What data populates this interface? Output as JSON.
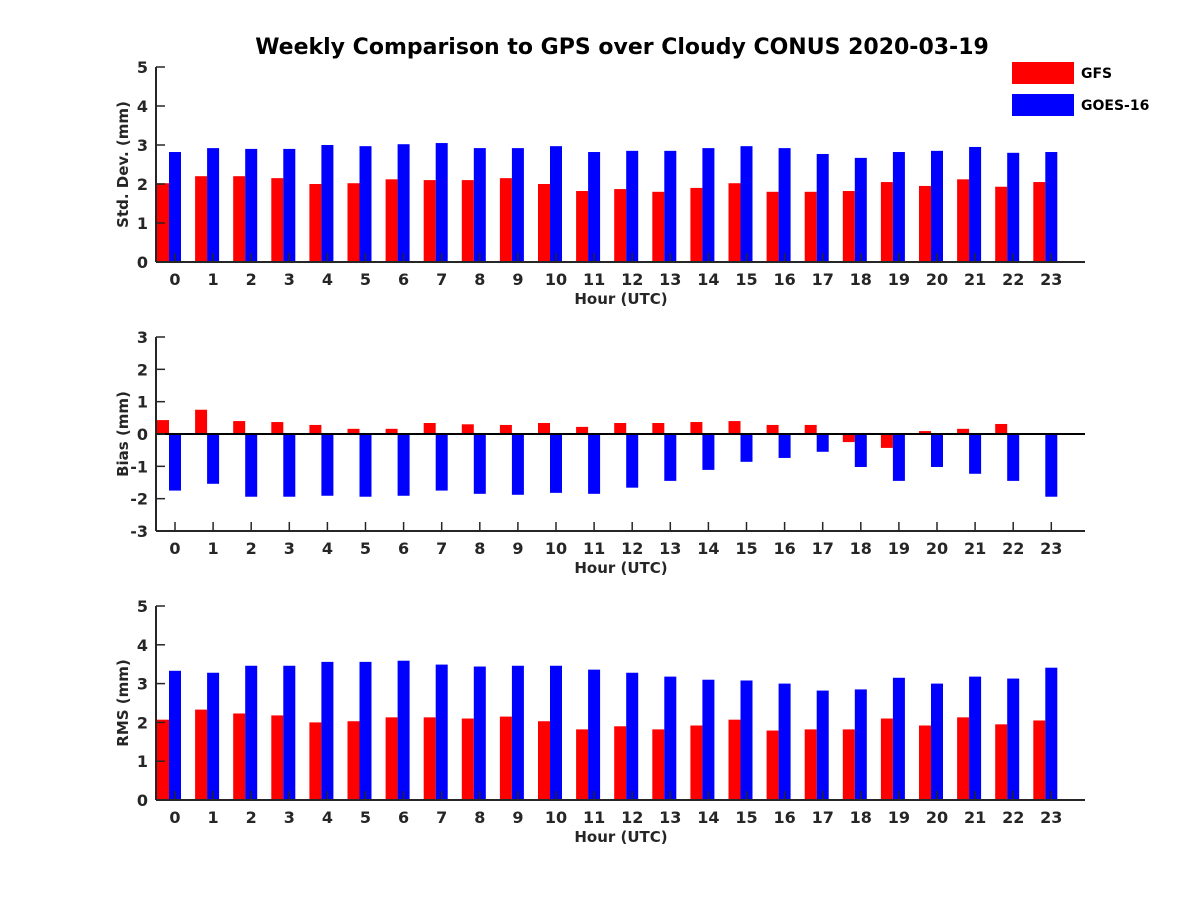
{
  "chart_data": {
    "type": "bar",
    "title": "Weekly Comparison to GPS over Cloudy CONUS 2020-03-19",
    "legend": {
      "placement": "top-right",
      "entries": [
        {
          "name": "GFS",
          "color": "#ff0000"
        },
        {
          "name": "GOES-16",
          "color": "#0000ff"
        }
      ]
    },
    "panels": [
      {
        "id": "std",
        "xlabel": "Hour (UTC)",
        "ylabel": "Std. Dev. (mm)",
        "ylim": [
          0,
          5
        ],
        "yticks": [
          "0",
          "1",
          "2",
          "3",
          "4",
          "5"
        ],
        "categories": [
          "0",
          "1",
          "2",
          "3",
          "4",
          "5",
          "6",
          "7",
          "8",
          "9",
          "10",
          "11",
          "12",
          "13",
          "14",
          "15",
          "16",
          "17",
          "18",
          "19",
          "20",
          "21",
          "22",
          "23"
        ],
        "series": [
          {
            "name": "GFS",
            "color": "#ff0000",
            "values": [
              2.02,
              2.2,
              2.2,
              2.15,
              2.0,
              2.02,
              2.12,
              2.1,
              2.1,
              2.15,
              2.0,
              1.82,
              1.87,
              1.8,
              1.9,
              2.02,
              1.8,
              1.8,
              1.82,
              2.05,
              1.95,
              2.12,
              1.93,
              2.05
            ]
          },
          {
            "name": "GOES-16",
            "color": "#0000ff",
            "values": [
              2.82,
              2.92,
              2.9,
              2.9,
              3.0,
              2.97,
              3.02,
              3.05,
              2.92,
              2.92,
              2.97,
              2.82,
              2.85,
              2.85,
              2.92,
              2.97,
              2.92,
              2.77,
              2.67,
              2.82,
              2.85,
              2.95,
              2.8,
              2.82
            ]
          }
        ]
      },
      {
        "id": "bias",
        "xlabel": "Hour (UTC)",
        "ylabel": "Bias (mm)",
        "ylim": [
          -3,
          3
        ],
        "yticks": [
          "-3",
          "-2",
          "-1",
          "0",
          "1",
          "2",
          "3"
        ],
        "categories": [
          "0",
          "1",
          "2",
          "3",
          "4",
          "5",
          "6",
          "7",
          "8",
          "9",
          "10",
          "11",
          "12",
          "13",
          "14",
          "15",
          "16",
          "17",
          "18",
          "19",
          "20",
          "21",
          "22",
          "23"
        ],
        "series": [
          {
            "name": "GFS",
            "color": "#ff0000",
            "values": [
              0.43,
              0.75,
              0.4,
              0.37,
              0.28,
              0.16,
              0.16,
              0.34,
              0.3,
              0.28,
              0.34,
              0.22,
              0.34,
              0.34,
              0.37,
              0.4,
              0.28,
              0.28,
              -0.25,
              -0.43,
              0.09,
              0.16,
              0.31,
              0.03
            ]
          },
          {
            "name": "GOES-16",
            "color": "#0000ff",
            "values": [
              -1.75,
              -1.54,
              -1.94,
              -1.94,
              -1.91,
              -1.94,
              -1.91,
              -1.75,
              -1.85,
              -1.88,
              -1.82,
              -1.85,
              -1.66,
              -1.45,
              -1.11,
              -0.86,
              -0.74,
              -0.55,
              -1.02,
              -1.45,
              -1.02,
              -1.23,
              -1.45,
              -1.94
            ]
          }
        ]
      },
      {
        "id": "rms",
        "xlabel": "Hour (UTC)",
        "ylabel": "RMS (mm)",
        "ylim": [
          0,
          5
        ],
        "yticks": [
          "0",
          "1",
          "2",
          "3",
          "4",
          "5"
        ],
        "categories": [
          "0",
          "1",
          "2",
          "3",
          "4",
          "5",
          "6",
          "7",
          "8",
          "9",
          "10",
          "11",
          "12",
          "13",
          "14",
          "15",
          "16",
          "17",
          "18",
          "19",
          "20",
          "21",
          "22",
          "23"
        ],
        "series": [
          {
            "name": "GFS",
            "color": "#ff0000",
            "values": [
              2.07,
              2.33,
              2.23,
              2.18,
              2.0,
              2.03,
              2.13,
              2.13,
              2.1,
              2.15,
              2.03,
              1.82,
              1.9,
              1.82,
              1.92,
              2.07,
              1.79,
              1.82,
              1.82,
              2.1,
              1.92,
              2.13,
              1.95,
              2.05
            ]
          },
          {
            "name": "GOES-16",
            "color": "#0000ff",
            "values": [
              3.33,
              3.28,
              3.46,
              3.46,
              3.56,
              3.56,
              3.59,
              3.49,
              3.44,
              3.46,
              3.46,
              3.36,
              3.28,
              3.18,
              3.1,
              3.08,
              3.0,
              2.82,
              2.85,
              3.15,
              3.0,
              3.18,
              3.13,
              3.41
            ]
          }
        ]
      }
    ]
  }
}
